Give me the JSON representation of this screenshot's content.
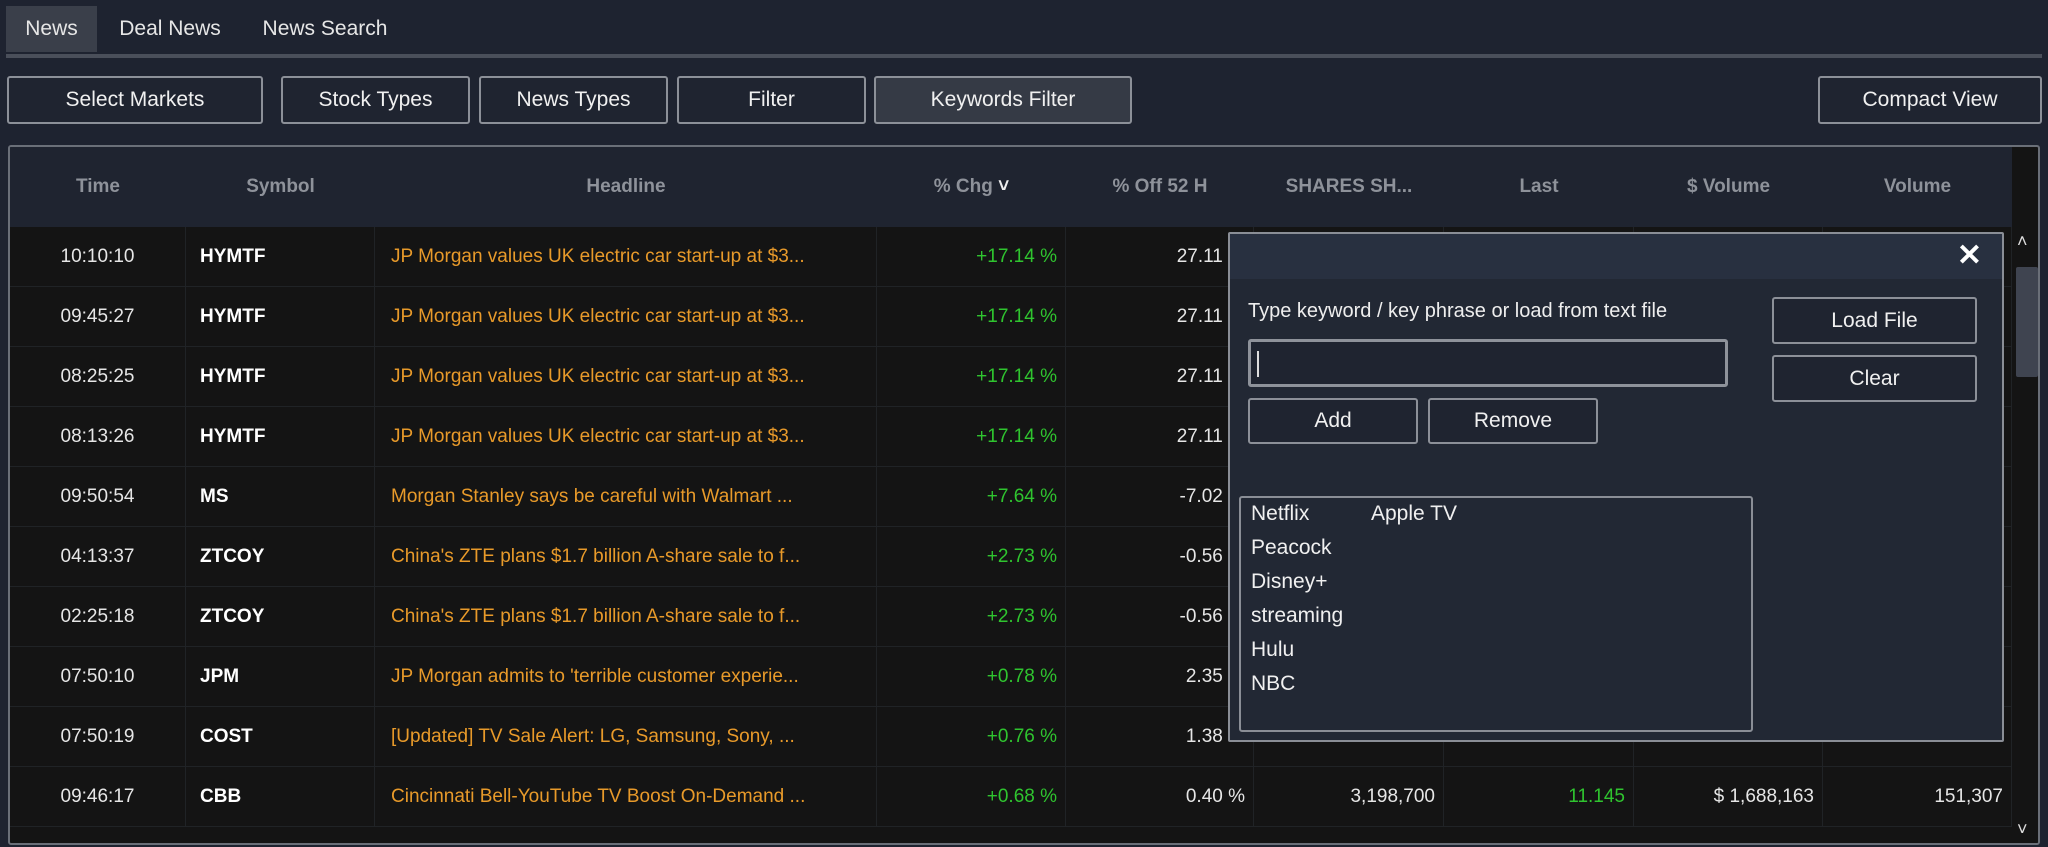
{
  "tabs": [
    {
      "label": "News",
      "active": true
    },
    {
      "label": "Deal News"
    },
    {
      "label": "News Search"
    }
  ],
  "toolbar": {
    "select_markets": "Select Markets",
    "stock_types": "Stock Types",
    "news_types": "News Types",
    "filter": "Filter",
    "keywords_filter": "Keywords Filter",
    "compact_view": "Compact View"
  },
  "table": {
    "columns": [
      "Time",
      "Symbol",
      "Headline",
      "% Chg",
      "% Off 52 H",
      "SHARES SH...",
      "Last",
      "$ Volume",
      "Volume"
    ],
    "sort_column": "% Chg",
    "sort_icon": "chevron-down-icon",
    "rows": [
      [
        "10:10:10",
        "HYMTF",
        "JP Morgan values UK electric car start-up at $3...",
        "+17.14 %",
        "27.11 %",
        "",
        "",
        "",
        ""
      ],
      [
        "09:45:27",
        "HYMTF",
        "JP Morgan values UK electric car start-up at $3...",
        "+17.14 %",
        "27.11 %",
        "",
        "",
        "",
        ""
      ],
      [
        "08:25:25",
        "HYMTF",
        "JP Morgan values UK electric car start-up at $3...",
        "+17.14 %",
        "27.11 %",
        "",
        "",
        "",
        ""
      ],
      [
        "08:13:26",
        "HYMTF",
        "JP Morgan values UK electric car start-up at $3...",
        "+17.14 %",
        "27.11 %",
        "",
        "",
        "",
        ""
      ],
      [
        "09:50:54",
        "MS",
        "Morgan Stanley says be careful with Walmart ...",
        "+7.64 %",
        "-7.02 %",
        "",
        "",
        "",
        ""
      ],
      [
        "04:13:37",
        "ZTCOY",
        "China's ZTE plans $1.7 billion A-share sale to f...",
        "+2.73 %",
        "-0.56 %",
        "",
        "",
        "",
        ""
      ],
      [
        "02:25:18",
        "ZTCOY",
        "China's ZTE plans $1.7 billion A-share sale to f...",
        "+2.73 %",
        "-0.56 %",
        "",
        "",
        "",
        ""
      ],
      [
        "07:50:10",
        "JPM",
        "JP Morgan admits to 'terrible customer experie...",
        "+0.78 %",
        "2.35 %",
        "",
        "",
        "",
        ""
      ],
      [
        "07:50:19",
        "COST",
        "[Updated] TV Sale Alert: LG, Samsung, Sony, ...",
        "+0.76 %",
        "1.38 %",
        "",
        "",
        "",
        ""
      ],
      [
        "09:46:17",
        "CBB",
        "Cincinnati Bell-YouTube TV Boost On-Demand ...",
        "+0.68 %",
        "0.40 %",
        "3,198,700",
        "11.145",
        "$ 1,688,163",
        "151,307"
      ]
    ]
  },
  "keywords_dialog": {
    "close_icon": "close-icon",
    "prompt": "Type keyword / key phrase or load from text file",
    "input_value": "",
    "add": "Add",
    "remove": "Remove",
    "load_file": "Load File",
    "clear": "Clear",
    "keywords_col1": [
      "Netflix",
      "Peacock",
      "Disney+",
      "streaming",
      "Hulu",
      "NBC"
    ],
    "keywords_col2": [
      "Apple TV"
    ]
  },
  "colors": {
    "headline": "#e89a2a",
    "positive": "#2fc42f",
    "background": "#1e2330"
  }
}
